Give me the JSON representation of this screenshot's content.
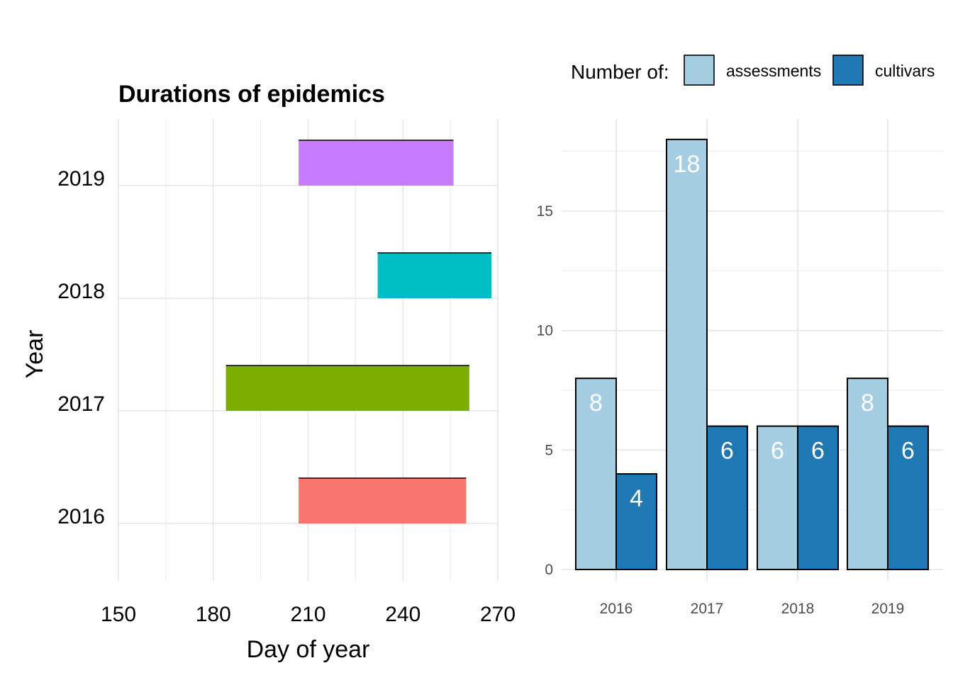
{
  "chart_data": [
    {
      "type": "bar",
      "orientation": "horizontal-range",
      "title": "Durations of epidemics",
      "xlabel": "Day of year",
      "ylabel": "Year",
      "xlim": [
        150,
        270
      ],
      "xticks": [
        "150",
        "180",
        "210",
        "240",
        "270"
      ],
      "categories": [
        "2016",
        "2017",
        "2018",
        "2019"
      ],
      "ranges": [
        {
          "year": "2016",
          "start": 207,
          "end": 260,
          "color": "#F8766D"
        },
        {
          "year": "2017",
          "start": 184,
          "end": 261,
          "color": "#7CAE00"
        },
        {
          "year": "2018",
          "start": 232,
          "end": 268,
          "color": "#00BFC4"
        },
        {
          "year": "2019",
          "start": 207,
          "end": 256,
          "color": "#C77CFF"
        }
      ],
      "grid": true,
      "legend": "none"
    },
    {
      "type": "bar",
      "orientation": "vertical-grouped",
      "title": "",
      "xlabel": "",
      "ylabel": "",
      "ylim": [
        0,
        19
      ],
      "yticks": [
        "0",
        "5",
        "10",
        "15"
      ],
      "categories": [
        "2016",
        "2017",
        "2018",
        "2019"
      ],
      "legend_title": "Number of:",
      "legend_position": "top",
      "series": [
        {
          "name": "assessments",
          "color": "#A6CEE3",
          "values": [
            8,
            18,
            6,
            8
          ],
          "labels": [
            "8",
            "18",
            "6",
            "8"
          ]
        },
        {
          "name": "cultivars",
          "color": "#1F78B4",
          "values": [
            4,
            6,
            6,
            6
          ],
          "labels": [
            "4",
            "6",
            "6",
            "6"
          ]
        }
      ],
      "grid": true
    }
  ]
}
